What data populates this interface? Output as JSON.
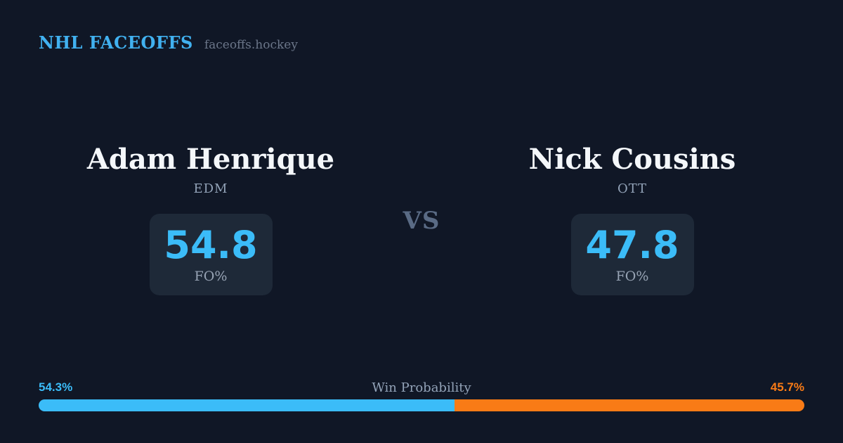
{
  "brand": {
    "title": "NHL FACEOFFS",
    "domain": "faceoffs.hockey"
  },
  "matchup": {
    "vs_label": "VS",
    "players": [
      {
        "name": "Adam Henrique",
        "team": "EDM",
        "stat_value": "54.8",
        "stat_label": "FO%"
      },
      {
        "name": "Nick Cousins",
        "team": "OTT",
        "stat_value": "47.8",
        "stat_label": "FO%"
      }
    ]
  },
  "win_probability": {
    "label": "Win Probability",
    "left_label": "54.3%",
    "right_label": "45.7%",
    "left_value": 54.3,
    "right_value": 45.7,
    "left_color": "#3bbcf8",
    "right_color": "#f97b16"
  },
  "colors": {
    "background": "#101726",
    "card": "#1e2938",
    "accent_blue": "#3bbcf8",
    "accent_orange": "#f97b16",
    "text_primary": "#f4f7fa",
    "text_muted": "#93a3b8"
  }
}
